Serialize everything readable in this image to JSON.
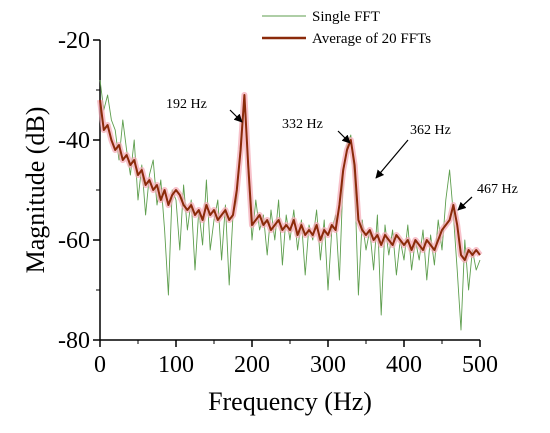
{
  "chart_data": {
    "type": "line",
    "xlabel": "Frequency (Hz)",
    "ylabel": "Magnitude (dB)",
    "xlim": [
      0,
      500
    ],
    "xticks": [
      0,
      100,
      200,
      300,
      400,
      500
    ],
    "ylim": [
      -80,
      -20
    ],
    "yticks": [
      -20,
      -40,
      -60,
      -80
    ],
    "x": [
      0,
      5,
      10,
      15,
      20,
      25,
      30,
      35,
      40,
      45,
      50,
      55,
      60,
      65,
      70,
      75,
      80,
      85,
      90,
      95,
      100,
      105,
      110,
      115,
      120,
      125,
      130,
      135,
      140,
      145,
      150,
      155,
      160,
      165,
      170,
      175,
      180,
      185,
      190,
      195,
      200,
      205,
      210,
      215,
      220,
      225,
      230,
      235,
      240,
      245,
      250,
      255,
      260,
      265,
      270,
      275,
      280,
      285,
      290,
      295,
      300,
      305,
      310,
      315,
      320,
      325,
      330,
      335,
      340,
      345,
      350,
      355,
      360,
      365,
      370,
      375,
      380,
      385,
      390,
      395,
      400,
      405,
      410,
      415,
      420,
      425,
      430,
      435,
      440,
      445,
      450,
      455,
      460,
      465,
      470,
      475,
      480,
      485,
      490,
      495,
      500
    ],
    "series": [
      {
        "name": "Single FFT",
        "color": "#5e9e4e",
        "values": [
          -28,
          -34,
          -31,
          -36,
          -38,
          -44,
          -36,
          -42,
          -47,
          -40,
          -52,
          -45,
          -55,
          -47,
          -44,
          -53,
          -48,
          -58,
          -71,
          -50,
          -52,
          -62,
          -49,
          -58,
          -52,
          -66,
          -54,
          -61,
          -48,
          -62,
          -56,
          -52,
          -64,
          -53,
          -69,
          -55,
          -52,
          -40,
          -31,
          -47,
          -60,
          -52,
          -58,
          -55,
          -63,
          -54,
          -60,
          -52,
          -65,
          -55,
          -60,
          -54,
          -62,
          -56,
          -67,
          -57,
          -60,
          -54,
          -64,
          -56,
          -70,
          -58,
          -55,
          -68,
          -47,
          -41,
          -39,
          -48,
          -71,
          -56,
          -62,
          -58,
          -66,
          -55,
          -75,
          -57,
          -63,
          -58,
          -67,
          -60,
          -64,
          -57,
          -66,
          -60,
          -64,
          -58,
          -68,
          -59,
          -65,
          -56,
          -62,
          -52,
          -46,
          -55,
          -66,
          -78,
          -60,
          -70,
          -62,
          -66,
          -64
        ]
      },
      {
        "name": "Average of 20 FFTs",
        "color": "#8b2a0a",
        "values": [
          -32,
          -38,
          -37,
          -40,
          -42,
          -41,
          -44,
          -43,
          -45,
          -44,
          -47,
          -46,
          -49,
          -48,
          -50,
          -49,
          -52,
          -50,
          -53,
          -51,
          -50,
          -51,
          -53,
          -54,
          -53,
          -55,
          -54,
          -56,
          -53,
          -55,
          -54,
          -56,
          -55,
          -54,
          -56,
          -55,
          -50,
          -42,
          -31,
          -45,
          -57,
          -56,
          -55,
          -57,
          -56,
          -58,
          -57,
          -56,
          -58,
          -57,
          -58,
          -56,
          -59,
          -57,
          -59,
          -58,
          -59,
          -57,
          -60,
          -58,
          -59,
          -57,
          -58,
          -53,
          -46,
          -42,
          -40,
          -45,
          -56,
          -58,
          -59,
          -58,
          -60,
          -59,
          -61,
          -59,
          -60,
          -61,
          -59,
          -60,
          -61,
          -60,
          -62,
          -60,
          -61,
          -62,
          -60,
          -61,
          -62,
          -60,
          -58,
          -57,
          -56,
          -53,
          -57,
          -63,
          -64,
          -62,
          -63,
          -62,
          -63
        ]
      }
    ],
    "annotations": [
      "192 Hz",
      "332 Hz",
      "362 Hz",
      "467 Hz"
    ]
  }
}
